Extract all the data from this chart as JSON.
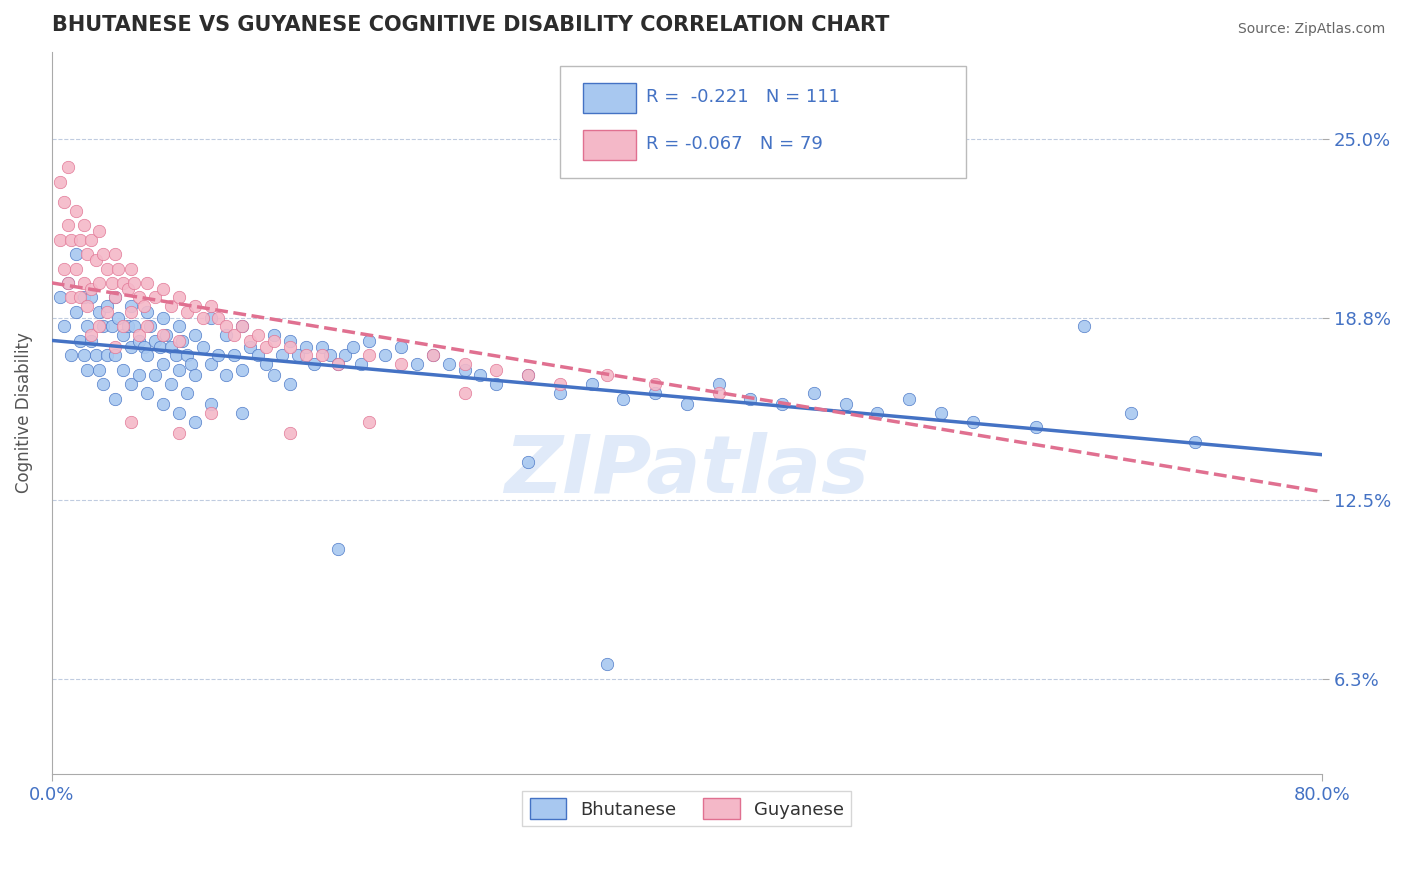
{
  "title": "BHUTANESE VS GUYANESE COGNITIVE DISABILITY CORRELATION CHART",
  "source": "Source: ZipAtlas.com",
  "ylabel": "Cognitive Disability",
  "ytick_labels": [
    "6.3%",
    "12.5%",
    "18.8%",
    "25.0%"
  ],
  "ytick_values": [
    0.063,
    0.125,
    0.188,
    0.25
  ],
  "xlim": [
    0.0,
    0.8
  ],
  "ylim": [
    0.03,
    0.28
  ],
  "watermark": "ZIPatlas",
  "blue_color": "#a8c8f0",
  "pink_color": "#f4b8c8",
  "blue_line_color": "#4472c4",
  "pink_line_color": "#e07090",
  "title_color": "#2c2c2c",
  "label_color": "#4472c4",
  "blue_scatter": [
    [
      0.005,
      0.195
    ],
    [
      0.008,
      0.185
    ],
    [
      0.01,
      0.2
    ],
    [
      0.012,
      0.175
    ],
    [
      0.015,
      0.21
    ],
    [
      0.015,
      0.19
    ],
    [
      0.018,
      0.18
    ],
    [
      0.02,
      0.195
    ],
    [
      0.02,
      0.175
    ],
    [
      0.022,
      0.185
    ],
    [
      0.022,
      0.17
    ],
    [
      0.025,
      0.195
    ],
    [
      0.025,
      0.18
    ],
    [
      0.028,
      0.175
    ],
    [
      0.03,
      0.19
    ],
    [
      0.03,
      0.17
    ],
    [
      0.032,
      0.185
    ],
    [
      0.032,
      0.165
    ],
    [
      0.035,
      0.192
    ],
    [
      0.035,
      0.175
    ],
    [
      0.038,
      0.185
    ],
    [
      0.04,
      0.195
    ],
    [
      0.04,
      0.175
    ],
    [
      0.04,
      0.16
    ],
    [
      0.042,
      0.188
    ],
    [
      0.045,
      0.182
    ],
    [
      0.045,
      0.17
    ],
    [
      0.048,
      0.185
    ],
    [
      0.05,
      0.192
    ],
    [
      0.05,
      0.178
    ],
    [
      0.05,
      0.165
    ],
    [
      0.052,
      0.185
    ],
    [
      0.055,
      0.18
    ],
    [
      0.055,
      0.168
    ],
    [
      0.058,
      0.178
    ],
    [
      0.06,
      0.19
    ],
    [
      0.06,
      0.175
    ],
    [
      0.06,
      0.162
    ],
    [
      0.062,
      0.185
    ],
    [
      0.065,
      0.18
    ],
    [
      0.065,
      0.168
    ],
    [
      0.068,
      0.178
    ],
    [
      0.07,
      0.188
    ],
    [
      0.07,
      0.172
    ],
    [
      0.07,
      0.158
    ],
    [
      0.072,
      0.182
    ],
    [
      0.075,
      0.178
    ],
    [
      0.075,
      0.165
    ],
    [
      0.078,
      0.175
    ],
    [
      0.08,
      0.185
    ],
    [
      0.08,
      0.17
    ],
    [
      0.08,
      0.155
    ],
    [
      0.082,
      0.18
    ],
    [
      0.085,
      0.175
    ],
    [
      0.085,
      0.162
    ],
    [
      0.088,
      0.172
    ],
    [
      0.09,
      0.182
    ],
    [
      0.09,
      0.168
    ],
    [
      0.09,
      0.152
    ],
    [
      0.095,
      0.178
    ],
    [
      0.1,
      0.188
    ],
    [
      0.1,
      0.172
    ],
    [
      0.1,
      0.158
    ],
    [
      0.105,
      0.175
    ],
    [
      0.11,
      0.182
    ],
    [
      0.11,
      0.168
    ],
    [
      0.115,
      0.175
    ],
    [
      0.12,
      0.185
    ],
    [
      0.12,
      0.17
    ],
    [
      0.12,
      0.155
    ],
    [
      0.125,
      0.178
    ],
    [
      0.13,
      0.175
    ],
    [
      0.135,
      0.172
    ],
    [
      0.14,
      0.182
    ],
    [
      0.14,
      0.168
    ],
    [
      0.145,
      0.175
    ],
    [
      0.15,
      0.18
    ],
    [
      0.15,
      0.165
    ],
    [
      0.155,
      0.175
    ],
    [
      0.16,
      0.178
    ],
    [
      0.165,
      0.172
    ],
    [
      0.17,
      0.178
    ],
    [
      0.175,
      0.175
    ],
    [
      0.18,
      0.172
    ],
    [
      0.185,
      0.175
    ],
    [
      0.19,
      0.178
    ],
    [
      0.195,
      0.172
    ],
    [
      0.2,
      0.18
    ],
    [
      0.21,
      0.175
    ],
    [
      0.22,
      0.178
    ],
    [
      0.23,
      0.172
    ],
    [
      0.24,
      0.175
    ],
    [
      0.25,
      0.172
    ],
    [
      0.26,
      0.17
    ],
    [
      0.27,
      0.168
    ],
    [
      0.28,
      0.165
    ],
    [
      0.3,
      0.168
    ],
    [
      0.32,
      0.162
    ],
    [
      0.34,
      0.165
    ],
    [
      0.36,
      0.16
    ],
    [
      0.38,
      0.162
    ],
    [
      0.4,
      0.158
    ],
    [
      0.42,
      0.165
    ],
    [
      0.44,
      0.16
    ],
    [
      0.46,
      0.158
    ],
    [
      0.48,
      0.162
    ],
    [
      0.5,
      0.158
    ],
    [
      0.52,
      0.155
    ],
    [
      0.54,
      0.16
    ],
    [
      0.56,
      0.155
    ],
    [
      0.58,
      0.152
    ],
    [
      0.62,
      0.15
    ],
    [
      0.65,
      0.185
    ],
    [
      0.68,
      0.155
    ],
    [
      0.72,
      0.145
    ],
    [
      0.3,
      0.138
    ],
    [
      0.18,
      0.108
    ],
    [
      0.35,
      0.068
    ]
  ],
  "pink_scatter": [
    [
      0.005,
      0.235
    ],
    [
      0.005,
      0.215
    ],
    [
      0.008,
      0.228
    ],
    [
      0.008,
      0.205
    ],
    [
      0.01,
      0.24
    ],
    [
      0.01,
      0.22
    ],
    [
      0.01,
      0.2
    ],
    [
      0.012,
      0.215
    ],
    [
      0.012,
      0.195
    ],
    [
      0.015,
      0.225
    ],
    [
      0.015,
      0.205
    ],
    [
      0.018,
      0.215
    ],
    [
      0.018,
      0.195
    ],
    [
      0.02,
      0.22
    ],
    [
      0.02,
      0.2
    ],
    [
      0.022,
      0.21
    ],
    [
      0.022,
      0.192
    ],
    [
      0.025,
      0.215
    ],
    [
      0.025,
      0.198
    ],
    [
      0.025,
      0.182
    ],
    [
      0.028,
      0.208
    ],
    [
      0.03,
      0.218
    ],
    [
      0.03,
      0.2
    ],
    [
      0.03,
      0.185
    ],
    [
      0.032,
      0.21
    ],
    [
      0.035,
      0.205
    ],
    [
      0.035,
      0.19
    ],
    [
      0.038,
      0.2
    ],
    [
      0.04,
      0.21
    ],
    [
      0.04,
      0.195
    ],
    [
      0.04,
      0.178
    ],
    [
      0.042,
      0.205
    ],
    [
      0.045,
      0.2
    ],
    [
      0.045,
      0.185
    ],
    [
      0.048,
      0.198
    ],
    [
      0.05,
      0.205
    ],
    [
      0.05,
      0.19
    ],
    [
      0.052,
      0.2
    ],
    [
      0.055,
      0.195
    ],
    [
      0.055,
      0.182
    ],
    [
      0.058,
      0.192
    ],
    [
      0.06,
      0.2
    ],
    [
      0.06,
      0.185
    ],
    [
      0.065,
      0.195
    ],
    [
      0.07,
      0.198
    ],
    [
      0.07,
      0.182
    ],
    [
      0.075,
      0.192
    ],
    [
      0.08,
      0.195
    ],
    [
      0.08,
      0.18
    ],
    [
      0.085,
      0.19
    ],
    [
      0.09,
      0.192
    ],
    [
      0.095,
      0.188
    ],
    [
      0.1,
      0.192
    ],
    [
      0.105,
      0.188
    ],
    [
      0.11,
      0.185
    ],
    [
      0.115,
      0.182
    ],
    [
      0.12,
      0.185
    ],
    [
      0.125,
      0.18
    ],
    [
      0.13,
      0.182
    ],
    [
      0.135,
      0.178
    ],
    [
      0.14,
      0.18
    ],
    [
      0.15,
      0.178
    ],
    [
      0.16,
      0.175
    ],
    [
      0.17,
      0.175
    ],
    [
      0.18,
      0.172
    ],
    [
      0.2,
      0.175
    ],
    [
      0.22,
      0.172
    ],
    [
      0.24,
      0.175
    ],
    [
      0.26,
      0.172
    ],
    [
      0.28,
      0.17
    ],
    [
      0.3,
      0.168
    ],
    [
      0.32,
      0.165
    ],
    [
      0.35,
      0.168
    ],
    [
      0.38,
      0.165
    ],
    [
      0.42,
      0.162
    ],
    [
      0.1,
      0.155
    ],
    [
      0.15,
      0.148
    ],
    [
      0.2,
      0.152
    ],
    [
      0.05,
      0.152
    ],
    [
      0.08,
      0.148
    ],
    [
      0.26,
      0.162
    ],
    [
      0.47,
      0.258
    ]
  ]
}
